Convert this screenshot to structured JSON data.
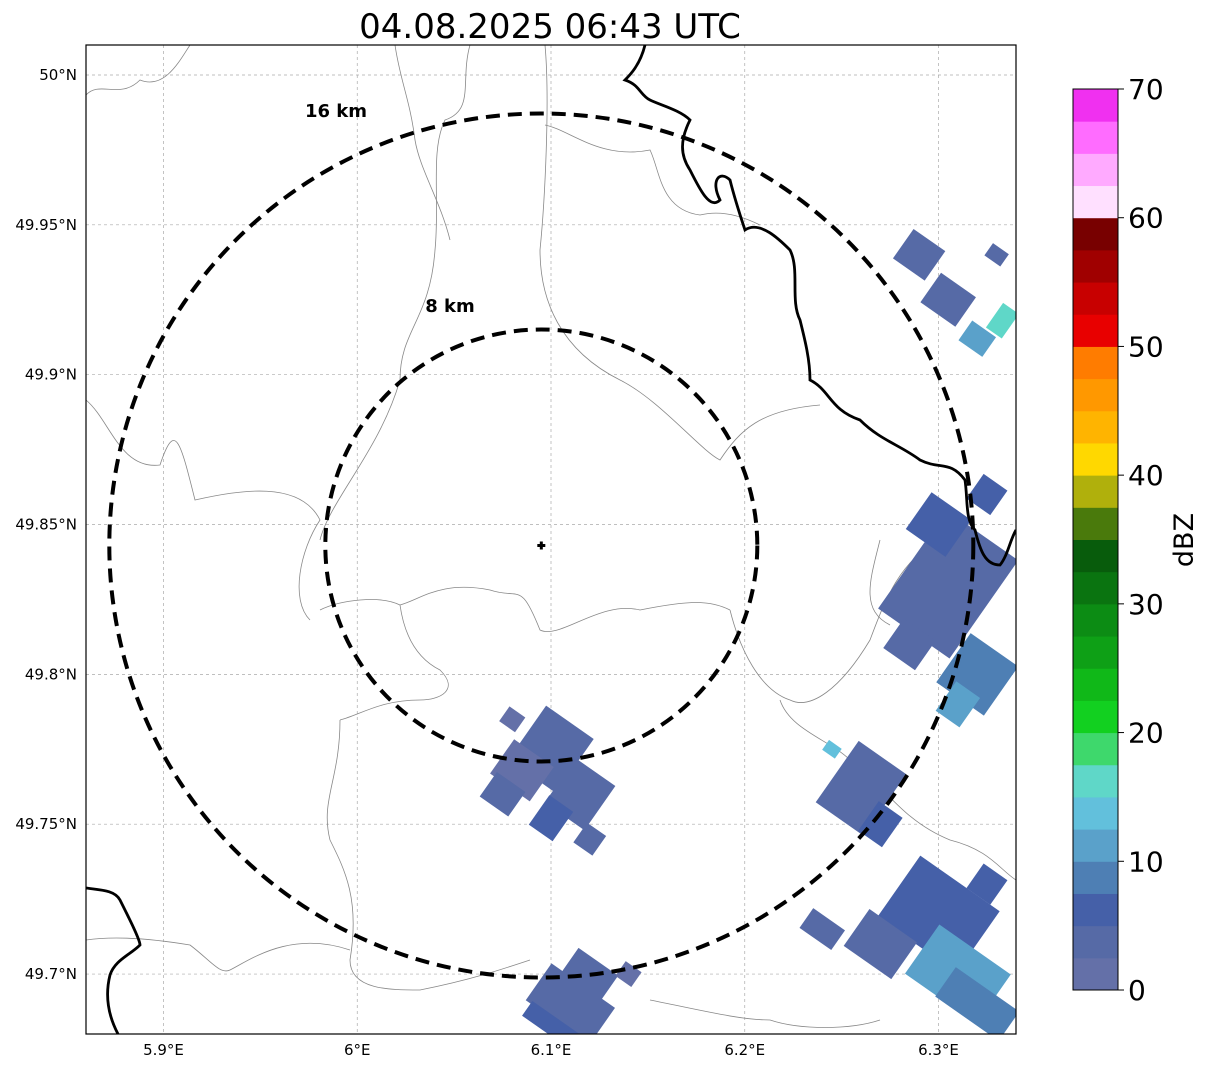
{
  "title": "04.08.2025 06:43 UTC",
  "map": {
    "lon_range": [
      5.86,
      6.34
    ],
    "lat_range": [
      49.68,
      50.01
    ],
    "lon_ticks": [
      {
        "value": 5.9,
        "label": "5.9°E"
      },
      {
        "value": 6.0,
        "label": "6°E"
      },
      {
        "value": 6.1,
        "label": "6.1°E"
      },
      {
        "value": 6.2,
        "label": "6.2°E"
      },
      {
        "value": 6.3,
        "label": "6.3°E"
      }
    ],
    "lat_ticks": [
      {
        "value": 50.0,
        "label": "50°N"
      },
      {
        "value": 49.95,
        "label": "49.95°N"
      },
      {
        "value": 49.9,
        "label": "49.9°N"
      },
      {
        "value": 49.85,
        "label": "49.85°N"
      },
      {
        "value": 49.8,
        "label": "49.8°N"
      },
      {
        "value": 49.75,
        "label": "49.75°N"
      },
      {
        "value": 49.7,
        "label": "49.7°N"
      }
    ],
    "grid": true,
    "radar_site": {
      "lon": 6.095,
      "lat": 49.843
    },
    "range_rings": [
      {
        "radius_km": 8,
        "label": "8 km"
      },
      {
        "radius_km": 16,
        "label": "16 km"
      }
    ]
  },
  "colorbar": {
    "label": "dBZ",
    "min": 0,
    "max": 70,
    "ticks": [
      0,
      10,
      20,
      30,
      40,
      50,
      60,
      70
    ],
    "colors": [
      "#6470a8",
      "#566aa6",
      "#4560a8",
      "#4e7fb4",
      "#5aa1ca",
      "#62c0dc",
      "#5fd7c8",
      "#3ed86c",
      "#12d020",
      "#10b818",
      "#0ea016",
      "#0c8c14",
      "#0a7410",
      "#085c0c",
      "#4a7a0c",
      "#b0b00c",
      "#ffd800",
      "#ffb400",
      "#ff9800",
      "#ff7c00",
      "#e80000",
      "#c80000",
      "#a00000",
      "#780000",
      "#ffe0ff",
      "#ffaaff",
      "#ff6cff",
      "#f030f0"
    ]
  },
  "echoes": [
    {
      "lon": 6.1,
      "lat": 49.775,
      "dbz": 4,
      "w": 0.03,
      "h": 0.022
    },
    {
      "lon": 6.115,
      "lat": 49.76,
      "dbz": 3,
      "w": 0.025,
      "h": 0.018
    },
    {
      "lon": 6.085,
      "lat": 49.768,
      "dbz": 2,
      "w": 0.025,
      "h": 0.014
    },
    {
      "lon": 6.1,
      "lat": 49.752,
      "dbz": 5,
      "w": 0.015,
      "h": 0.012
    },
    {
      "lon": 6.12,
      "lat": 49.745,
      "dbz": 3,
      "w": 0.012,
      "h": 0.008
    },
    {
      "lon": 6.08,
      "lat": 49.785,
      "dbz": 2,
      "w": 0.01,
      "h": 0.006
    },
    {
      "lon": 6.075,
      "lat": 49.76,
      "dbz": 3,
      "w": 0.018,
      "h": 0.01
    },
    {
      "lon": 6.26,
      "lat": 49.762,
      "dbz": 4,
      "w": 0.03,
      "h": 0.025
    },
    {
      "lon": 6.27,
      "lat": 49.75,
      "dbz": 6,
      "w": 0.015,
      "h": 0.012
    },
    {
      "lon": 6.245,
      "lat": 49.775,
      "dbz": 14,
      "w": 0.008,
      "h": 0.004
    },
    {
      "lon": 6.305,
      "lat": 49.83,
      "dbz": 4,
      "w": 0.045,
      "h": 0.04
    },
    {
      "lon": 6.32,
      "lat": 49.8,
      "dbz": 8,
      "w": 0.03,
      "h": 0.02
    },
    {
      "lon": 6.31,
      "lat": 49.79,
      "dbz": 10,
      "w": 0.015,
      "h": 0.012
    },
    {
      "lon": 6.3,
      "lat": 49.85,
      "dbz": 6,
      "w": 0.025,
      "h": 0.015
    },
    {
      "lon": 6.325,
      "lat": 49.86,
      "dbz": 5,
      "w": 0.015,
      "h": 0.01
    },
    {
      "lon": 6.285,
      "lat": 49.81,
      "dbz": 3,
      "w": 0.02,
      "h": 0.012
    },
    {
      "lon": 6.29,
      "lat": 49.94,
      "dbz": 4,
      "w": 0.02,
      "h": 0.012
    },
    {
      "lon": 6.305,
      "lat": 49.925,
      "dbz": 3,
      "w": 0.022,
      "h": 0.012
    },
    {
      "lon": 6.32,
      "lat": 49.912,
      "dbz": 12,
      "w": 0.015,
      "h": 0.008
    },
    {
      "lon": 6.333,
      "lat": 49.918,
      "dbz": 15,
      "w": 0.01,
      "h": 0.01
    },
    {
      "lon": 6.33,
      "lat": 49.94,
      "dbz": 4,
      "w": 0.01,
      "h": 0.005
    },
    {
      "lon": 6.3,
      "lat": 49.72,
      "dbz": 7,
      "w": 0.05,
      "h": 0.025
    },
    {
      "lon": 6.31,
      "lat": 49.7,
      "dbz": 10,
      "w": 0.045,
      "h": 0.02
    },
    {
      "lon": 6.32,
      "lat": 49.69,
      "dbz": 8,
      "w": 0.04,
      "h": 0.012
    },
    {
      "lon": 6.27,
      "lat": 49.71,
      "dbz": 4,
      "w": 0.03,
      "h": 0.015
    },
    {
      "lon": 6.24,
      "lat": 49.715,
      "dbz": 3,
      "w": 0.02,
      "h": 0.008
    },
    {
      "lon": 6.325,
      "lat": 49.73,
      "dbz": 6,
      "w": 0.015,
      "h": 0.01
    },
    {
      "lon": 6.11,
      "lat": 49.69,
      "dbz": 4,
      "w": 0.04,
      "h": 0.015
    },
    {
      "lon": 6.12,
      "lat": 49.7,
      "dbz": 3,
      "w": 0.025,
      "h": 0.01
    },
    {
      "lon": 6.1,
      "lat": 49.683,
      "dbz": 6,
      "w": 0.03,
      "h": 0.006
    },
    {
      "lon": 6.14,
      "lat": 49.7,
      "dbz": 2,
      "w": 0.01,
      "h": 0.006
    }
  ]
}
